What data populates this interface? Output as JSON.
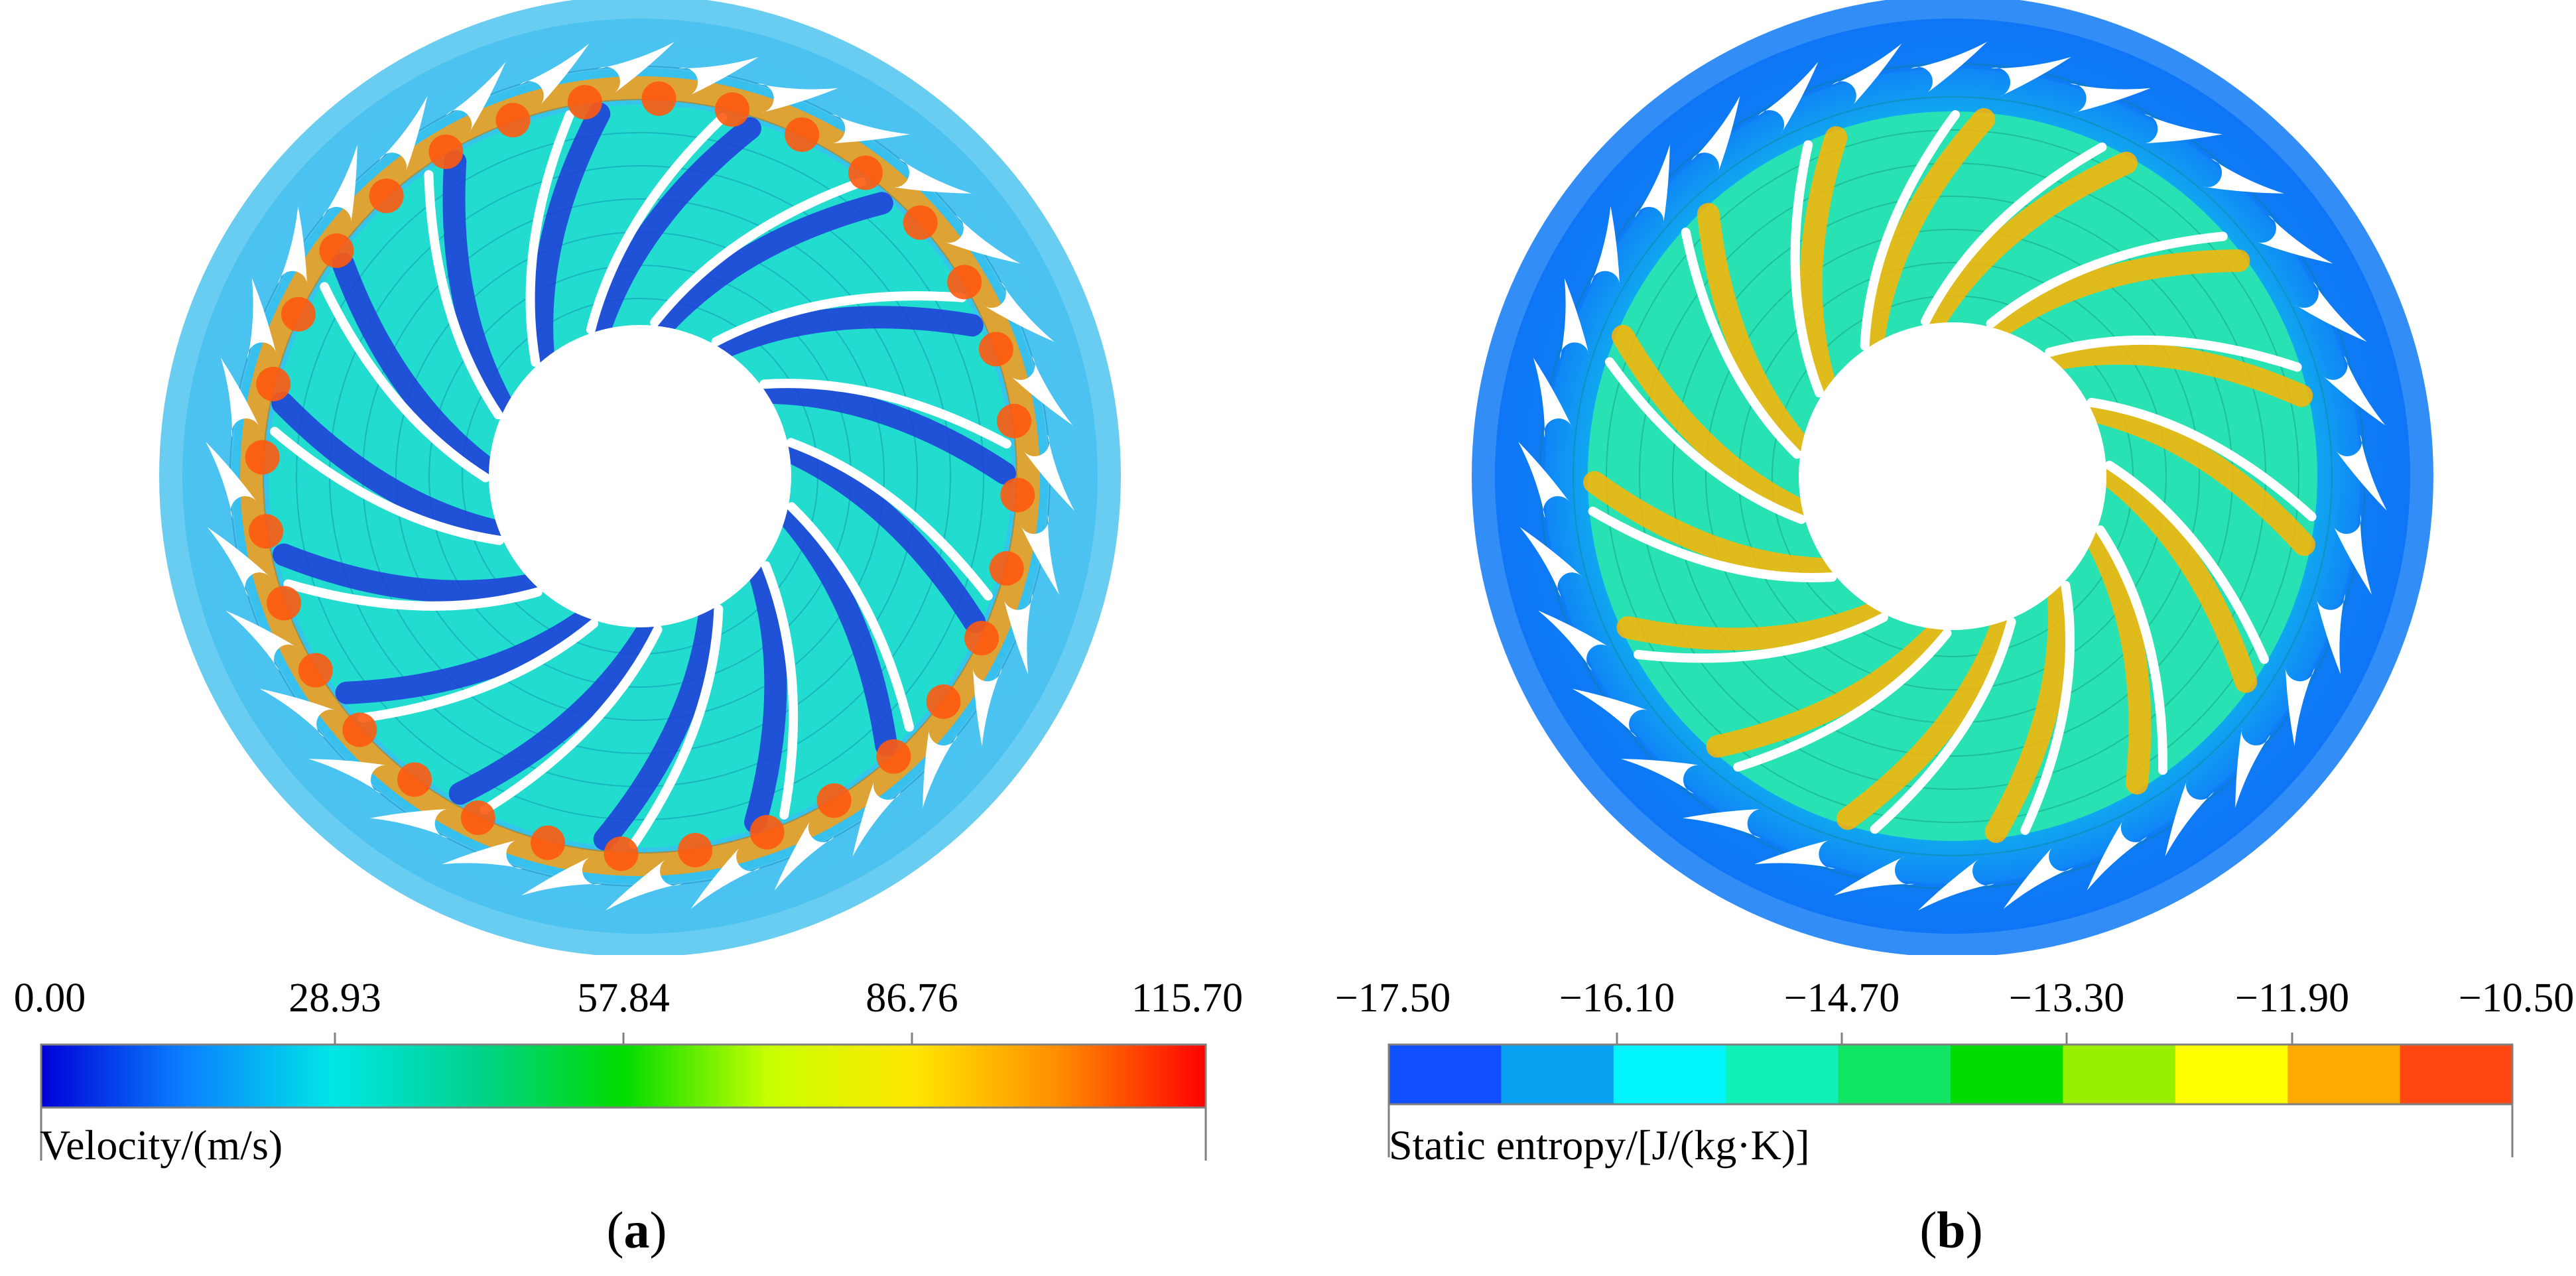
{
  "panel_a": {
    "label_open": "(",
    "label_letter": "a",
    "label_close": ")",
    "colorbar_title": "Velocity/(m/s)",
    "colorbar_ticks": [
      "0.00",
      "28.93",
      "57.84",
      "86.76",
      "115.70"
    ],
    "colorbar_colors": [
      "#0000d8",
      "#0a82ff",
      "#00e6e6",
      "#00d28c",
      "#00dc00",
      "#c8ff00",
      "#ffe600",
      "#ff8c00",
      "#ff0000"
    ]
  },
  "panel_b": {
    "label_open": "(",
    "label_letter": "b",
    "label_close": ")",
    "colorbar_title": "Static entropy/[J/(kg·K)]",
    "colorbar_ticks": [
      "−17.50",
      "−16.10",
      "−14.70",
      "−13.30",
      "−11.90",
      "−10.50"
    ],
    "colorbar_colors": [
      "#1050ff",
      "#08a0f0",
      "#00f5ff",
      "#10f0b8",
      "#10e664",
      "#00dc00",
      "#96f000",
      "#ffff00",
      "#ffaa00",
      "#ff4610"
    ]
  }
}
